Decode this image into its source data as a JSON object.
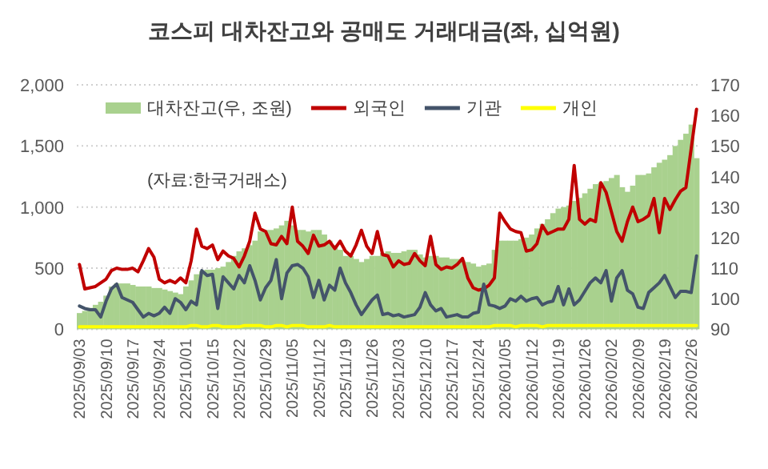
{
  "chart_data": {
    "type": "line",
    "title": "코스피 대차잔고와 공매도 거래대금(좌, 십억원)",
    "categories": [
      "2025/09/03",
      null,
      null,
      null,
      null,
      "2025/09/10",
      null,
      null,
      null,
      null,
      "2025/09/17",
      null,
      null,
      null,
      null,
      "2025/09/24",
      null,
      null,
      null,
      null,
      "2025/10/01",
      null,
      null,
      null,
      null,
      "2025/10/15",
      null,
      null,
      null,
      null,
      "2025/10/22",
      null,
      null,
      null,
      null,
      "2025/10/29",
      null,
      null,
      null,
      null,
      "2025/11/05",
      null,
      null,
      null,
      null,
      "2025/11/12",
      null,
      null,
      null,
      null,
      "2025/11/19",
      null,
      null,
      null,
      null,
      "2025/11/26",
      null,
      null,
      null,
      null,
      "2025/12/03",
      null,
      null,
      null,
      null,
      "2025/12/10",
      null,
      null,
      null,
      null,
      "2025/12/17",
      null,
      null,
      null,
      null,
      "2025/12/24",
      null,
      null,
      null,
      null,
      "2026/01/05",
      null,
      null,
      null,
      null,
      "2026/01/12",
      null,
      null,
      null,
      null,
      "2026/01/19",
      null,
      null,
      null,
      null,
      "2026/01/26",
      null,
      null,
      null,
      null,
      "2026/02/02",
      null,
      null,
      null,
      null,
      "2026/02/09",
      null,
      null,
      null,
      null,
      "2026/02/19",
      null,
      null,
      null,
      null,
      "2026/02/26",
      null
    ],
    "series": [
      {
        "name": "대차잔고(우, 조원)",
        "type": "bar",
        "axis": "y2",
        "color": "#a9d18e",
        "values": [
          95.3,
          96,
          97,
          98,
          99,
          101,
          104,
          105,
          105,
          105,
          104.5,
          104,
          104,
          104,
          103.5,
          103.5,
          103,
          102.5,
          102,
          101.5,
          104,
          106,
          108,
          109,
          109.5,
          109.5,
          110,
          110.5,
          112,
          114,
          115.5,
          116.5,
          117.5,
          119,
          122,
          122.5,
          122.5,
          123,
          124,
          125.5,
          124,
          122.5,
          122.5,
          122,
          122.5,
          122.5,
          121,
          119,
          117.5,
          116,
          114,
          114,
          113,
          112,
          113,
          114,
          114,
          115,
          115.5,
          115,
          115,
          115.5,
          116,
          116,
          114.5,
          113.5,
          114,
          114,
          113.5,
          113.5,
          113,
          113,
          112.5,
          112,
          111.5,
          110.5,
          111,
          111.5,
          116,
          119,
          119,
          119,
          119,
          119.5,
          120,
          121,
          123,
          124.5,
          126,
          128,
          129.5,
          130,
          130.5,
          132,
          133,
          134.5,
          136,
          137.5,
          138,
          138.5,
          139.5,
          140.5,
          136.5,
          135,
          137,
          140.5,
          140.5,
          141,
          143,
          144.5,
          145.5,
          147,
          150,
          152,
          154,
          157,
          146
        ]
      },
      {
        "name": "외국인",
        "color": "#c00000",
        "values": [
          530,
          330,
          340,
          350,
          380,
          410,
          480,
          500,
          490,
          490,
          500,
          470,
          560,
          660,
          590,
          410,
          380,
          400,
          380,
          420,
          380,
          560,
          820,
          680,
          660,
          690,
          570,
          640,
          600,
          580,
          510,
          600,
          720,
          950,
          820,
          800,
          700,
          690,
          760,
          700,
          1000,
          720,
          680,
          620,
          770,
          680,
          690,
          720,
          660,
          720,
          640,
          600,
          690,
          810,
          680,
          620,
          800,
          610,
          600,
          510,
          560,
          530,
          540,
          620,
          560,
          520,
          760,
          530,
          490,
          510,
          500,
          530,
          580,
          420,
          340,
          320,
          330,
          360,
          420,
          950,
          880,
          820,
          800,
          790,
          640,
          650,
          700,
          850,
          780,
          800,
          820,
          820,
          900,
          1340,
          900,
          860,
          900,
          880,
          1200,
          1120,
          960,
          800,
          720,
          880,
          1000,
          880,
          900,
          930,
          1070,
          790,
          1070,
          980,
          1060,
          1130,
          1160,
          1480,
          1800
        ]
      },
      {
        "name": "기관",
        "color": "#44546a",
        "values": [
          190,
          170,
          160,
          160,
          100,
          230,
          330,
          370,
          260,
          240,
          220,
          160,
          100,
          130,
          110,
          130,
          180,
          130,
          250,
          220,
          160,
          230,
          200,
          480,
          440,
          450,
          170,
          430,
          380,
          330,
          440,
          380,
          520,
          400,
          240,
          340,
          400,
          570,
          250,
          460,
          520,
          530,
          500,
          430,
          260,
          400,
          240,
          360,
          320,
          500,
          380,
          300,
          200,
          120,
          180,
          240,
          280,
          120,
          130,
          110,
          120,
          100,
          110,
          120,
          180,
          300,
          200,
          150,
          170,
          100,
          110,
          120,
          100,
          100,
          130,
          140,
          370,
          200,
          190,
          170,
          190,
          250,
          230,
          270,
          230,
          250,
          260,
          200,
          220,
          230,
          350,
          200,
          330,
          200,
          240,
          310,
          380,
          420,
          380,
          480,
          230,
          420,
          480,
          320,
          290,
          180,
          170,
          300,
          340,
          380,
          440,
          350,
          260,
          310,
          310,
          300,
          600
        ]
      },
      {
        "name": "개인",
        "color": "#ffff00",
        "values": [
          20,
          20,
          20,
          20,
          20,
          20,
          20,
          20,
          20,
          20,
          20,
          20,
          20,
          20,
          20,
          20,
          20,
          20,
          20,
          20,
          20,
          30,
          30,
          20,
          20,
          30,
          30,
          20,
          20,
          20,
          20,
          30,
          30,
          30,
          30,
          20,
          20,
          30,
          30,
          20,
          30,
          30,
          30,
          20,
          20,
          20,
          20,
          30,
          20,
          20,
          20,
          20,
          20,
          20,
          20,
          20,
          20,
          20,
          20,
          20,
          20,
          20,
          20,
          20,
          20,
          20,
          20,
          20,
          20,
          20,
          20,
          20,
          20,
          20,
          20,
          20,
          20,
          20,
          30,
          30,
          30,
          30,
          20,
          30,
          30,
          30,
          30,
          20,
          30,
          30,
          30,
          30,
          30,
          30,
          30,
          30,
          30,
          30,
          30,
          30,
          30,
          30,
          30,
          30,
          30,
          30,
          30,
          30,
          30,
          30,
          30,
          30,
          30,
          30,
          30,
          30,
          30
        ]
      }
    ],
    "ylim": [
      0,
      2000
    ],
    "yticks": [
      0,
      500,
      {
        "value": 1000,
        "label": "1,000"
      },
      {
        "value": 1500,
        "label": "1,500"
      },
      {
        "value": 2000,
        "label": "2,000"
      }
    ],
    "y2lim": [
      90,
      170
    ],
    "y2ticks": [
      90,
      100,
      110,
      120,
      130,
      140,
      150,
      160,
      170
    ],
    "grid": "y",
    "legend": "top",
    "annotations": [
      "(자료:한국거래소)"
    ]
  }
}
